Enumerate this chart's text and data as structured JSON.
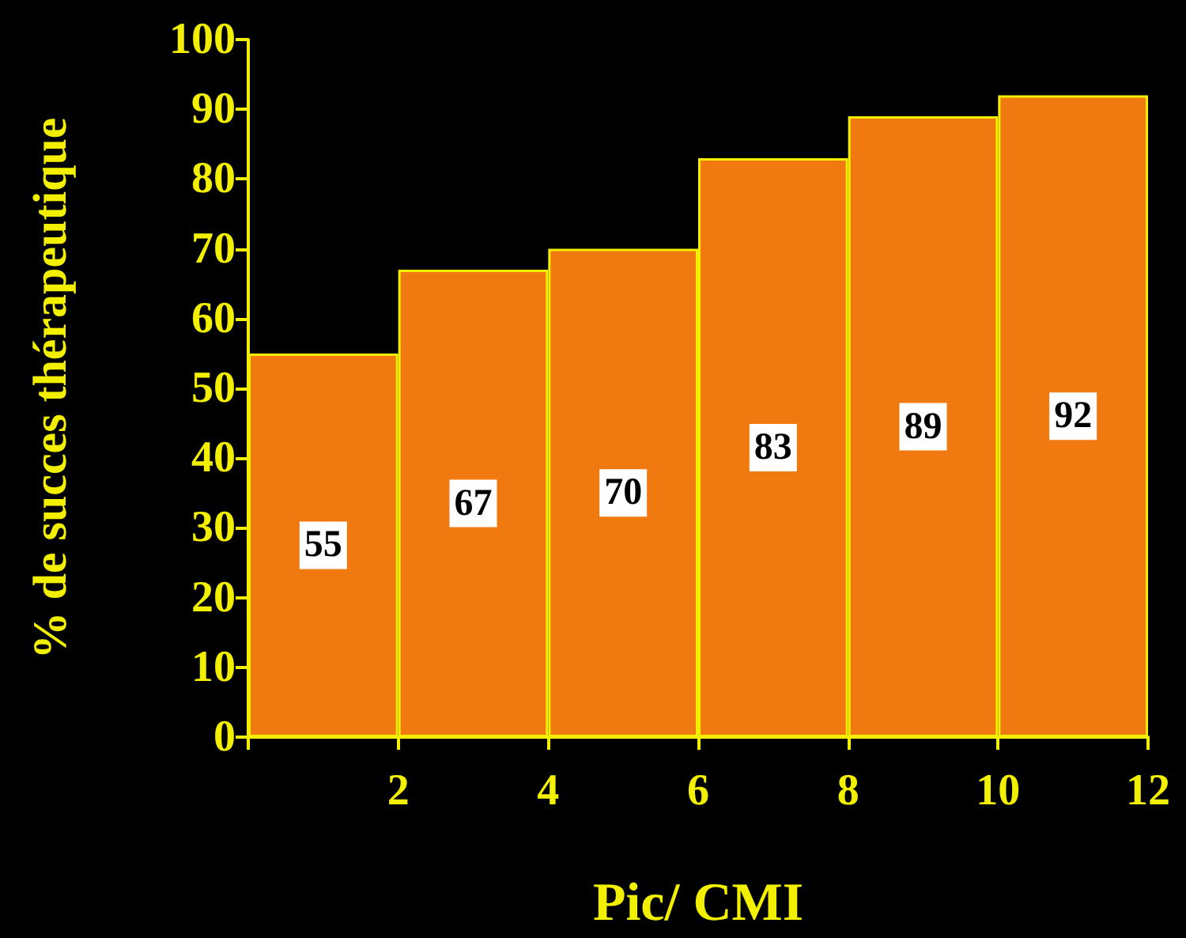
{
  "chart_data": {
    "type": "histogram",
    "xlabel": "Pic/ CMI",
    "ylabel": "% de succes thérapeutique",
    "bins": [
      0,
      2,
      4,
      6,
      8,
      10,
      12
    ],
    "values": [
      55,
      67,
      70,
      83,
      89,
      92
    ],
    "color": "#f07a10",
    "xlim": [
      0,
      12
    ],
    "xticks": [
      {
        "value": 0,
        "label": null
      },
      2,
      4,
      6,
      8,
      10,
      12
    ],
    "ylim": [
      0,
      100
    ],
    "yticks": [
      0,
      10,
      20,
      30,
      40,
      50,
      60,
      70,
      80,
      90,
      100
    ],
    "data_labels": true
  }
}
